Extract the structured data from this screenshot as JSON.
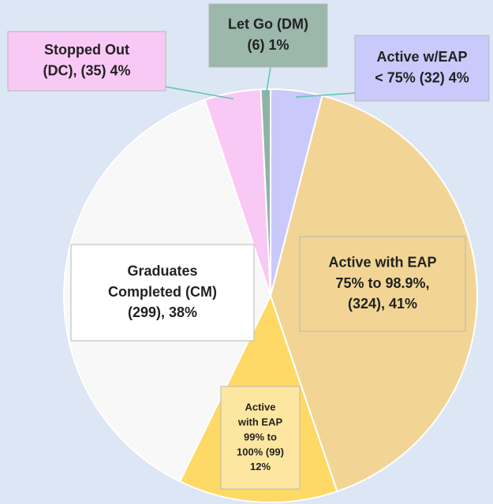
{
  "chart_data": {
    "type": "pie",
    "labels": [
      [
        "Active w/EAP",
        "< 75% (32) 4%"
      ],
      [
        "Active with EAP",
        "75% to 98.9%,",
        "(324), 41%"
      ],
      [
        "Active",
        "with EAP",
        "99% to",
        "100% (99)",
        "12%"
      ],
      [
        "Graduates",
        "Completed (CM)",
        "(299), 38%"
      ],
      [
        "Stopped Out",
        "(DC), (35) 4%"
      ],
      [
        "Let Go (DM)",
        "(6) 1%"
      ]
    ],
    "values": [
      32,
      324,
      99,
      299,
      35,
      6
    ],
    "colors": [
      "#c9c9fb",
      "#f2d595",
      "#ffd966",
      "#f8f8f8",
      "#f9c9f5",
      "#8fb3a5"
    ],
    "label_colors": [
      "#c9c9fb",
      "#f2d595",
      "#fde7a0",
      "#ffffff",
      "#f9c9f5",
      "#9cb7ac"
    ]
  }
}
